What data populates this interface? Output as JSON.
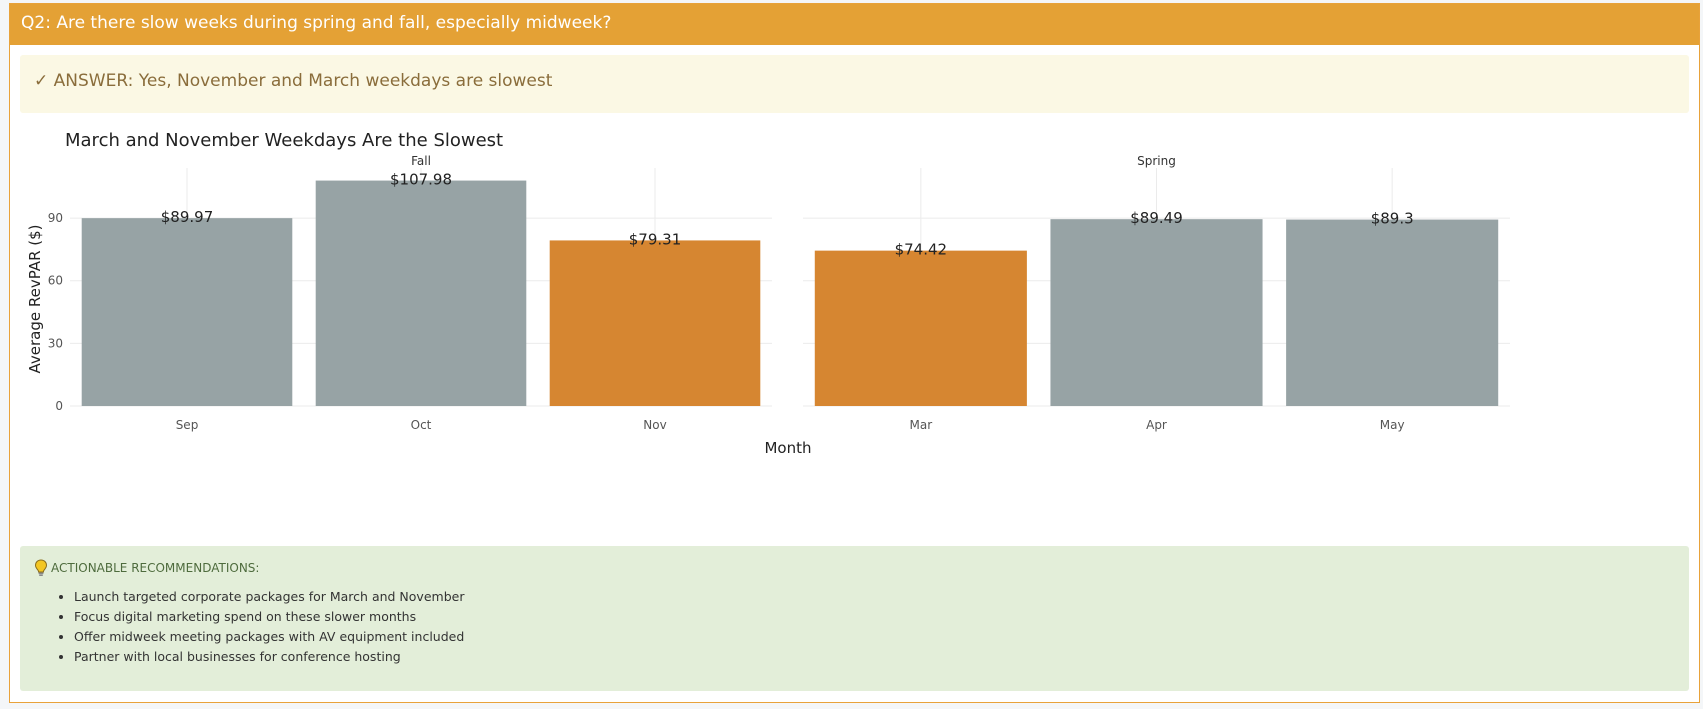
{
  "header": {
    "title": "Q2: Are there slow weeks during spring and fall, especially midweek?"
  },
  "answer": {
    "icon": "check-icon",
    "text": "✓ ANSWER: Yes, November and March weekdays are slowest"
  },
  "colors": {
    "header": "#e4a135",
    "slow": "#d68631",
    "normal": "#97a3a5",
    "answer_bg": "#fbf8e4",
    "reco_bg": "#e3eed9"
  },
  "chart_data": {
    "type": "bar",
    "title": "March and November Weekdays Are the Slowest",
    "xlabel": "Month",
    "ylabel": "Average RevPAR ($)",
    "ylim": [
      0,
      114
    ],
    "yticks": [
      0,
      30,
      60,
      90
    ],
    "grid": true,
    "facets": [
      {
        "name": "Fall",
        "categories": [
          "Sep",
          "Oct",
          "Nov"
        ],
        "values": [
          89.97,
          107.98,
          79.31
        ],
        "labels": [
          "$89.97",
          "$107.98",
          "$79.31"
        ],
        "highlight": [
          false,
          false,
          true
        ]
      },
      {
        "name": "Spring",
        "categories": [
          "Mar",
          "Apr",
          "May"
        ],
        "values": [
          74.42,
          89.49,
          89.3
        ],
        "labels": [
          "$74.42",
          "$89.49",
          "$89.3"
        ],
        "highlight": [
          true,
          false,
          false
        ]
      }
    ]
  },
  "recommendations": {
    "icon": "lightbulb-icon",
    "heading": "ACTIONABLE RECOMMENDATIONS:",
    "items": [
      "Launch targeted corporate packages for March and November",
      "Focus digital marketing spend on these slower months",
      "Offer midweek meeting packages with AV equipment included",
      "Partner with local businesses for conference hosting"
    ]
  }
}
